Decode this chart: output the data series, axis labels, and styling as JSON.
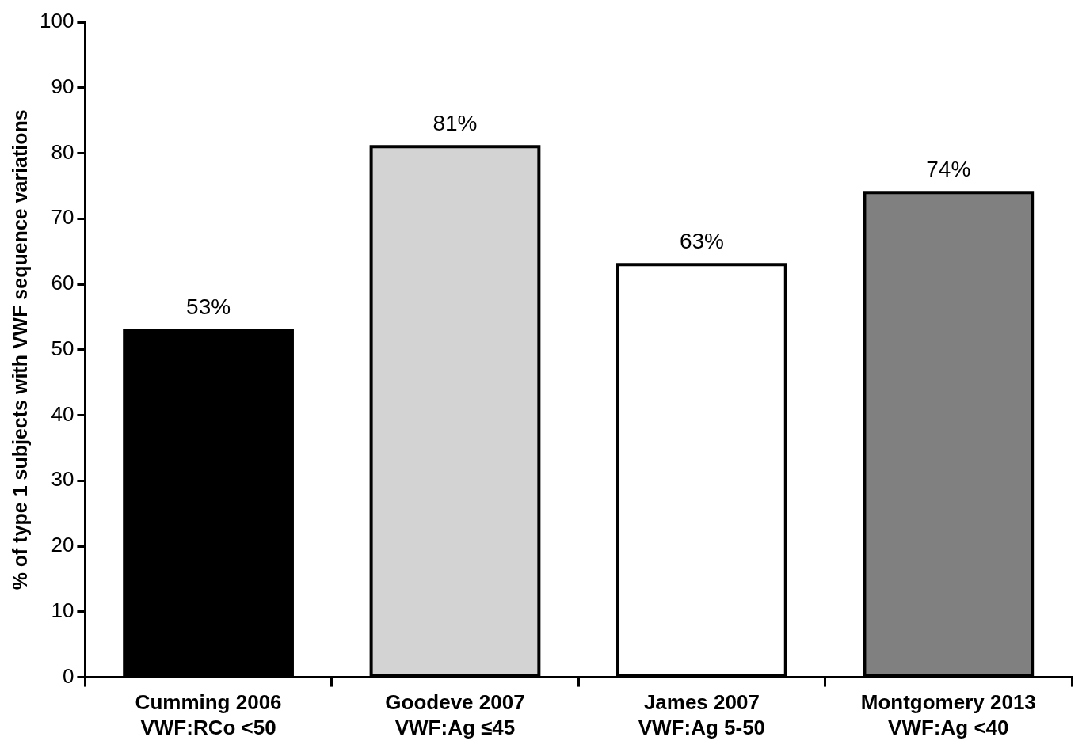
{
  "chart_data": {
    "type": "bar",
    "ylabel": "% of type 1 subjects with VWF sequence variations",
    "categories": [
      "Cumming 2006\nVWF:RCo <50",
      "Goodeve 2007\nVWF:Ag ≤45",
      "James 2007\nVWF:Ag 5-50",
      "Montgomery 2013\nVWF:Ag <40"
    ],
    "values": [
      53,
      81,
      63,
      74
    ],
    "colors": [
      "#000000",
      "#d3d3d3",
      "#ffffff",
      "#808080"
    ],
    "value_labels": [
      "53%",
      "81%",
      "63%",
      "74%"
    ],
    "ylim": [
      0,
      100
    ],
    "yticks": [
      0,
      10,
      20,
      30,
      40,
      50,
      60,
      70,
      80,
      90,
      100
    ],
    "grid": false,
    "legend": false
  }
}
